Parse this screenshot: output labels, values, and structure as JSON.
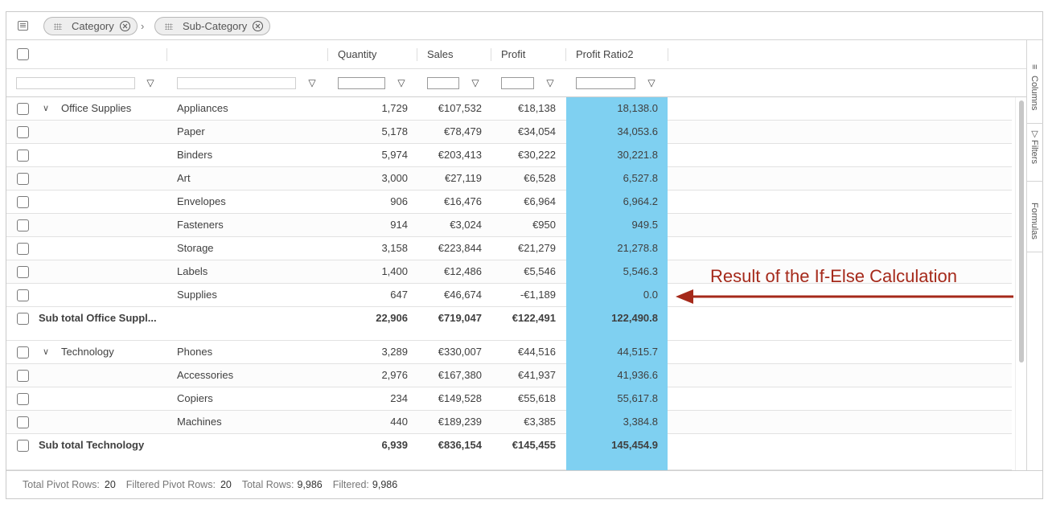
{
  "group_panel": {
    "chips": [
      {
        "label": "Category"
      },
      {
        "label": "Sub-Category"
      }
    ]
  },
  "columns": {
    "quantity": "Quantity",
    "sales": "Sales",
    "profit": "Profit",
    "profit_ratio": "Profit Ratio2"
  },
  "side_tabs": {
    "columns": "Columns",
    "filters": "Filters",
    "formulas": "Formulas"
  },
  "rows": [
    {
      "group": "Office Supplies",
      "sub": "Appliances",
      "quantity": "1,729",
      "sales": "€107,532",
      "profit": "€18,138",
      "ratio": "18,138.0"
    },
    {
      "group": "",
      "sub": "Paper",
      "quantity": "5,178",
      "sales": "€78,479",
      "profit": "€34,054",
      "ratio": "34,053.6"
    },
    {
      "group": "",
      "sub": "Binders",
      "quantity": "5,974",
      "sales": "€203,413",
      "profit": "€30,222",
      "ratio": "30,221.8"
    },
    {
      "group": "",
      "sub": "Art",
      "quantity": "3,000",
      "sales": "€27,119",
      "profit": "€6,528",
      "ratio": "6,527.8"
    },
    {
      "group": "",
      "sub": "Envelopes",
      "quantity": "906",
      "sales": "€16,476",
      "profit": "€6,964",
      "ratio": "6,964.2"
    },
    {
      "group": "",
      "sub": "Fasteners",
      "quantity": "914",
      "sales": "€3,024",
      "profit": "€950",
      "ratio": "949.5"
    },
    {
      "group": "",
      "sub": "Storage",
      "quantity": "3,158",
      "sales": "€223,844",
      "profit": "€21,279",
      "ratio": "21,278.8"
    },
    {
      "group": "",
      "sub": "Labels",
      "quantity": "1,400",
      "sales": "€12,486",
      "profit": "€5,546",
      "ratio": "5,546.3"
    },
    {
      "group": "",
      "sub": "Supplies",
      "quantity": "647",
      "sales": "€46,674",
      "profit": "-€1,189",
      "ratio": "0.0"
    }
  ],
  "subtotal_office": {
    "label": "Sub total Office Suppl...",
    "quantity": "22,906",
    "sales": "€719,047",
    "profit": "€122,491",
    "ratio": "122,490.8"
  },
  "rows_tech": [
    {
      "group": "Technology",
      "sub": "Phones",
      "quantity": "3,289",
      "sales": "€330,007",
      "profit": "€44,516",
      "ratio": "44,515.7"
    },
    {
      "group": "",
      "sub": "Accessories",
      "quantity": "2,976",
      "sales": "€167,380",
      "profit": "€41,937",
      "ratio": "41,936.6"
    },
    {
      "group": "",
      "sub": "Copiers",
      "quantity": "234",
      "sales": "€149,528",
      "profit": "€55,618",
      "ratio": "55,617.8"
    },
    {
      "group": "",
      "sub": "Machines",
      "quantity": "440",
      "sales": "€189,239",
      "profit": "€3,385",
      "ratio": "3,384.8"
    }
  ],
  "subtotal_tech": {
    "label": "Sub total Technology",
    "quantity": "6,939",
    "sales": "€836,154",
    "profit": "€145,455",
    "ratio": "145,454.9"
  },
  "status": {
    "total_pivot_label": "Total Pivot Rows:",
    "total_pivot_value": "20",
    "filtered_pivot_label": "Filtered Pivot Rows:",
    "filtered_pivot_value": "20",
    "total_rows_label": "Total Rows:",
    "total_rows_value": "9,986",
    "filtered_label": "Filtered:",
    "filtered_value": "9,986"
  },
  "annotation": "Result of the If-Else Calculation",
  "colors": {
    "highlight": "#7fd0f1",
    "annotation": "#a5291a"
  }
}
